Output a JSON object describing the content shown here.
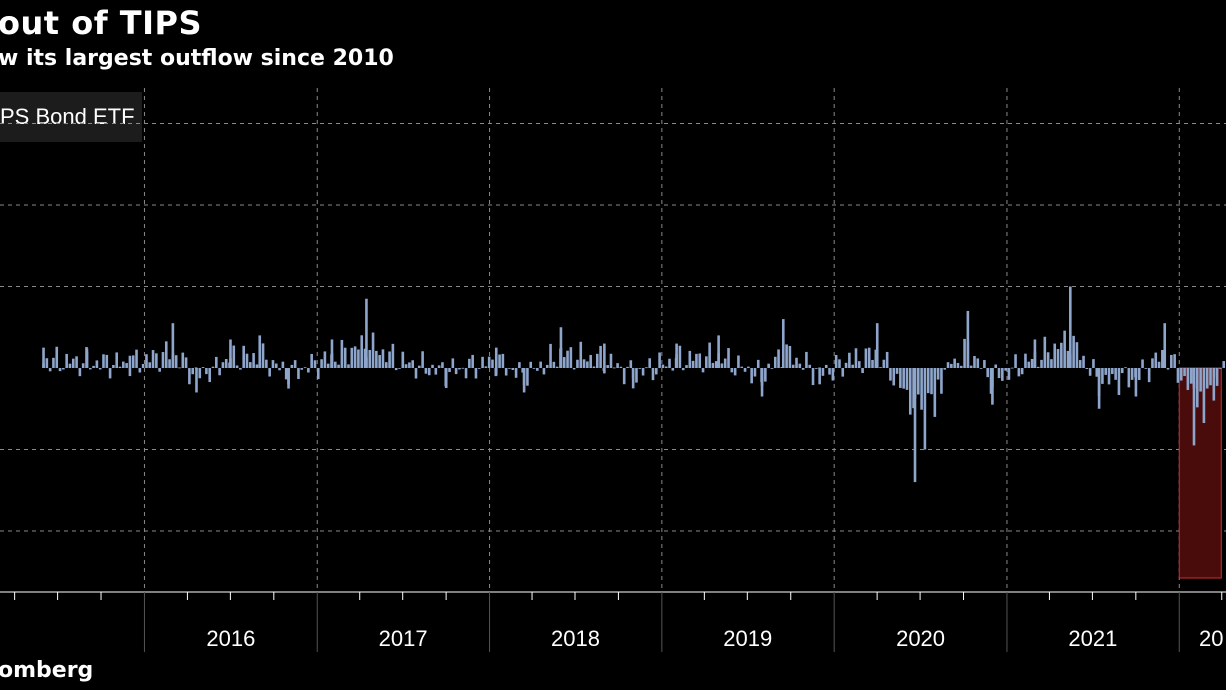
{
  "title": "out of TIPS",
  "subtitle": "w its largest outflow since 2010",
  "legend_label": "PS Bond ETF",
  "source": "omberg",
  "colors": {
    "bars": "#8EA6CC",
    "highlight_fill": "#4a0b0b",
    "highlight_stroke": "#d42b2b",
    "grid": "#8a8a8a",
    "axis": "#ffffff"
  },
  "chart_data": {
    "type": "bar",
    "title": "out of TIPS",
    "subtitle": "w its largest outflow since 2010",
    "legend": [
      "PS Bond ETF"
    ],
    "x_tick_labels": [
      "2016",
      "2017",
      "2018",
      "2019",
      "2020",
      "2021",
      "20"
    ],
    "grid": true,
    "highlighted_range": {
      "start": "2022-01-01",
      "end": "2022-03-31"
    },
    "series": [
      {
        "values": [
          {
            "date": "2015-06-01",
            "value": 0.25
          },
          {
            "date": "2015-09-01",
            "value": 0.2
          },
          {
            "date": "2015-12-01",
            "value": 0.15
          },
          {
            "date": "2016-03-01",
            "value": 0.55
          },
          {
            "date": "2016-04-20",
            "value": -0.3
          },
          {
            "date": "2016-07-01",
            "value": 0.35
          },
          {
            "date": "2016-09-01",
            "value": 0.4
          },
          {
            "date": "2016-11-01",
            "value": -0.2
          },
          {
            "date": "2017-02-01",
            "value": 0.35
          },
          {
            "date": "2017-04-15",
            "value": 0.85
          },
          {
            "date": "2017-07-01",
            "value": 0.2
          },
          {
            "date": "2017-10-01",
            "value": -0.15
          },
          {
            "date": "2018-01-15",
            "value": 0.25
          },
          {
            "date": "2018-03-15",
            "value": -0.3
          },
          {
            "date": "2018-06-01",
            "value": 0.5
          },
          {
            "date": "2018-09-01",
            "value": 0.3
          },
          {
            "date": "2018-11-01",
            "value": -0.25
          },
          {
            "date": "2019-02-01",
            "value": 0.3
          },
          {
            "date": "2019-05-01",
            "value": 0.4
          },
          {
            "date": "2019-08-01",
            "value": -0.35
          },
          {
            "date": "2019-09-15",
            "value": 0.6
          },
          {
            "date": "2019-12-01",
            "value": -0.2
          },
          {
            "date": "2020-04-01",
            "value": 0.55
          },
          {
            "date": "2020-06-20",
            "value": -1.4
          },
          {
            "date": "2020-08-01",
            "value": -0.6
          },
          {
            "date": "2020-10-10",
            "value": 0.7
          },
          {
            "date": "2020-12-01",
            "value": -0.45
          },
          {
            "date": "2021-03-01",
            "value": 0.35
          },
          {
            "date": "2021-05-15",
            "value": 1.0
          },
          {
            "date": "2021-07-15",
            "value": -0.5
          },
          {
            "date": "2021-10-01",
            "value": -0.35
          },
          {
            "date": "2021-12-01",
            "value": 0.55
          },
          {
            "date": "2022-02-01",
            "value": -0.95
          },
          {
            "date": "2022-03-15",
            "value": -0.4
          },
          {
            "date": "2022-06-01",
            "value": 0.45
          },
          {
            "date": "2022-07-20",
            "value": -1.2
          },
          {
            "date": "2022-09-01",
            "value": 0.3
          },
          {
            "date": "2022-11-01",
            "value": -0.25
          },
          {
            "date": "2023-01-15",
            "value": 0.4
          },
          {
            "date": "2023-04-01",
            "value": -0.3
          },
          {
            "date": "2023-06-01",
            "value": 0.6
          },
          {
            "date": "2023-08-01",
            "value": 0.35
          },
          {
            "date": "2023-10-01",
            "value": -0.25
          },
          {
            "date": "2024-01-15",
            "value": 0.7
          },
          {
            "date": "2024-03-15",
            "value": -0.55
          },
          {
            "date": "2024-04-01",
            "value": 0.85
          },
          {
            "date": "2024-05-15",
            "value": 0.4
          },
          {
            "date": "2024-07-01",
            "value": -0.35
          },
          {
            "date": "2024-08-01",
            "value": 0.5
          },
          {
            "date": "2024-10-01",
            "value": -0.9
          },
          {
            "date": "2024-12-01",
            "value": 0.3
          },
          {
            "date": "2025-02-01",
            "value": -0.3
          },
          {
            "date": "2025-04-01",
            "value": -1.95
          },
          {
            "date": "2025-06-01",
            "value": 0.45
          },
          {
            "date": "2025-08-01",
            "value": -0.25
          },
          {
            "date": "2025-10-01",
            "value": 0.3
          },
          {
            "date": "2025-12-01",
            "value": -0.2
          },
          {
            "date": "2026-02-01",
            "value": 0.35
          },
          {
            "date": "2026-04-01",
            "value": 0.75
          },
          {
            "date": "2026-05-15",
            "value": -0.2
          },
          {
            "date": "2026-06-01",
            "value": 2.75
          },
          {
            "date": "2026-07-15",
            "value": 0.95
          },
          {
            "date": "2026-09-01",
            "value": 1.05
          },
          {
            "date": "2026-11-01",
            "value": 0.55
          },
          {
            "date": "2027-01-15",
            "value": 1.0
          },
          {
            "date": "2027-03-01",
            "value": 0.6
          },
          {
            "date": "2027-04-15",
            "value": -0.45
          },
          {
            "date": "2027-06-01",
            "value": 0.35
          },
          {
            "date": "2027-07-15",
            "value": -0.2
          },
          {
            "date": "2027-08-15",
            "value": 0.2
          }
        ]
      }
    ]
  }
}
